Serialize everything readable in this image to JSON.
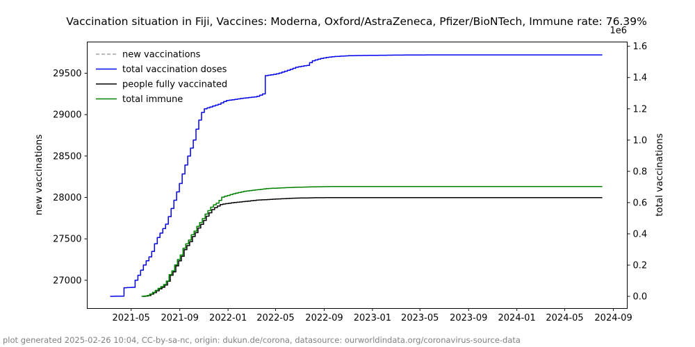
{
  "title": "Vaccination situation in Fiji, Vaccines: Moderna, Oxford/AstraZeneca, Pfizer/BioNTech, Immune rate: 76.39%",
  "footer": "plot generated 2025-02-26 10:04, CC-by-sa-nc, origin: dukun.de/corona, datasource: ourworldindata.org/coronavirus-source-data",
  "chart_data": {
    "type": "line",
    "title": "Vaccination situation in Fiji, Vaccines: Moderna, Oxford/AstraZeneca, Pfizer/BioNTech, Immune rate: 76.39%",
    "grid": false,
    "legend_position": "upper left",
    "x_axis": {
      "lim": [
        "2021-01-10",
        "2024-10-06"
      ],
      "ticks": [
        "2021-05-01",
        "2021-09-01",
        "2022-01-01",
        "2022-05-01",
        "2022-09-01",
        "2023-01-01",
        "2023-05-01",
        "2023-09-01",
        "2024-01-01",
        "2024-05-01",
        "2024-09-01"
      ],
      "tick_labels": [
        "2021-05",
        "2021-09",
        "2022-01",
        "2022-05",
        "2022-09",
        "2023-01",
        "2023-05",
        "2023-09",
        "2024-01",
        "2024-05",
        "2024-09"
      ]
    },
    "y_left": {
      "label": "new vaccinations",
      "lim": [
        26659,
        29877
      ],
      "ticks": [
        27000,
        27500,
        28000,
        28500,
        29000,
        29500
      ]
    },
    "y_right": {
      "label": "total vaccinations",
      "lim": [
        -77500,
        1627500
      ],
      "ticks": [
        0,
        200000,
        400000,
        600000,
        800000,
        1000000,
        1200000,
        1400000,
        1600000
      ],
      "offset_text": "1e6"
    },
    "legend": [
      {
        "label": "new vaccinations",
        "color": "#a0a0a0",
        "style": "dashed"
      },
      {
        "label": "total vaccination doses",
        "color": "#0000ee",
        "style": "solid"
      },
      {
        "label": "people fully vaccinated",
        "color": "#000000",
        "style": "solid"
      },
      {
        "label": "total immune",
        "color": "#008000",
        "style": "solid"
      }
    ],
    "series": [
      {
        "name": "people fully vaccinated",
        "color": "#000000",
        "style": "solid",
        "axis": "right",
        "points": [
          [
            "2021-05-30",
            0
          ],
          [
            "2021-06-12",
            4000
          ],
          [
            "2021-06-25",
            20000
          ],
          [
            "2021-07-12",
            50000
          ],
          [
            "2021-07-21",
            62000
          ],
          [
            "2021-07-30",
            85000
          ],
          [
            "2021-08-04",
            115000
          ],
          [
            "2021-08-09",
            140000
          ],
          [
            "2021-08-16",
            160000
          ],
          [
            "2021-08-21",
            190000
          ],
          [
            "2021-08-27",
            220000
          ],
          [
            "2021-09-03",
            245000
          ],
          [
            "2021-09-08",
            275000
          ],
          [
            "2021-09-13",
            305000
          ],
          [
            "2021-09-20",
            328000
          ],
          [
            "2021-09-26",
            350000
          ],
          [
            "2021-10-01",
            377000
          ],
          [
            "2021-10-08",
            399000
          ],
          [
            "2021-10-13",
            420000
          ],
          [
            "2021-10-18",
            442000
          ],
          [
            "2021-10-25",
            464000
          ],
          [
            "2021-10-31",
            486000
          ],
          [
            "2021-11-05",
            507000
          ],
          [
            "2021-11-12",
            528000
          ],
          [
            "2021-11-17",
            545000
          ],
          [
            "2021-11-22",
            558000
          ],
          [
            "2021-11-29",
            570000
          ],
          [
            "2021-12-05",
            578000
          ],
          [
            "2021-12-10",
            586000
          ],
          [
            "2021-12-17",
            590000
          ],
          [
            "2022-01-14",
            600000
          ],
          [
            "2022-02-13",
            608000
          ],
          [
            "2022-03-15",
            616000
          ],
          [
            "2022-04-12",
            620000
          ],
          [
            "2022-06-10",
            628000
          ],
          [
            "2022-08-07",
            631000
          ],
          [
            "2022-09-29",
            632000
          ],
          [
            "2023-06-01",
            632000
          ],
          [
            "2024-08-04",
            632000
          ]
        ]
      },
      {
        "name": "total immune",
        "color": "#008000",
        "style": "solid",
        "axis": "right",
        "points": [
          [
            "2021-05-27",
            0
          ],
          [
            "2021-06-10",
            5000
          ],
          [
            "2021-06-23",
            24000
          ],
          [
            "2021-07-10",
            55000
          ],
          [
            "2021-07-19",
            68000
          ],
          [
            "2021-07-28",
            91000
          ],
          [
            "2021-08-02",
            126000
          ],
          [
            "2021-08-07",
            148000
          ],
          [
            "2021-08-14",
            170000
          ],
          [
            "2021-08-19",
            201000
          ],
          [
            "2021-08-25",
            232000
          ],
          [
            "2021-09-01",
            258000
          ],
          [
            "2021-09-06",
            289000
          ],
          [
            "2021-09-11",
            320000
          ],
          [
            "2021-09-18",
            342000
          ],
          [
            "2021-09-24",
            364000
          ],
          [
            "2021-09-29",
            391000
          ],
          [
            "2021-10-06",
            413000
          ],
          [
            "2021-10-11",
            435000
          ],
          [
            "2021-10-16",
            457000
          ],
          [
            "2021-10-23",
            479000
          ],
          [
            "2021-10-29",
            501000
          ],
          [
            "2021-11-03",
            523000
          ],
          [
            "2021-11-10",
            545000
          ],
          [
            "2021-11-15",
            563000
          ],
          [
            "2021-11-20",
            576000
          ],
          [
            "2021-11-27",
            590000
          ],
          [
            "2021-12-03",
            598000
          ],
          [
            "2021-12-08",
            611000
          ],
          [
            "2021-12-15",
            634000
          ],
          [
            "2022-01-12",
            656000
          ],
          [
            "2022-02-11",
            673000
          ],
          [
            "2022-03-13",
            682000
          ],
          [
            "2022-04-10",
            690000
          ],
          [
            "2022-06-08",
            697000
          ],
          [
            "2022-08-05",
            701000
          ],
          [
            "2022-09-27",
            703000
          ],
          [
            "2023-06-01",
            703000
          ],
          [
            "2024-08-04",
            703000
          ]
        ]
      },
      {
        "name": "total vaccination doses",
        "color": "#0000ee",
        "style": "solid",
        "axis": "right",
        "points": [
          [
            "2021-03-09",
            0
          ],
          [
            "2021-04-10",
            2000
          ],
          [
            "2021-04-12",
            55000
          ],
          [
            "2021-05-06",
            58000
          ],
          [
            "2021-05-08",
            90000
          ],
          [
            "2021-05-18",
            135000
          ],
          [
            "2021-06-03",
            210000
          ],
          [
            "2021-06-19",
            267000
          ],
          [
            "2021-07-03",
            364000
          ],
          [
            "2021-07-15",
            413000
          ],
          [
            "2021-07-28",
            466000
          ],
          [
            "2021-08-07",
            540000
          ],
          [
            "2021-08-19",
            630000
          ],
          [
            "2021-09-01",
            730000
          ],
          [
            "2021-09-06",
            775000
          ],
          [
            "2021-09-20",
            890000
          ],
          [
            "2021-10-05",
            1000000
          ],
          [
            "2021-10-15",
            1100000
          ],
          [
            "2021-10-25",
            1170000
          ],
          [
            "2021-10-29",
            1197000
          ],
          [
            "2021-11-20",
            1215000
          ],
          [
            "2021-12-08",
            1230000
          ],
          [
            "2021-12-25",
            1252000
          ],
          [
            "2022-02-01",
            1266000
          ],
          [
            "2022-03-13",
            1278000
          ],
          [
            "2022-03-29",
            1295000
          ],
          [
            "2022-03-31",
            1410000
          ],
          [
            "2022-05-04",
            1424000
          ],
          [
            "2022-06-01",
            1447000
          ],
          [
            "2022-06-22",
            1467000
          ],
          [
            "2022-07-24",
            1480000
          ],
          [
            "2022-07-27",
            1503000
          ],
          [
            "2022-08-22",
            1522000
          ],
          [
            "2022-09-17",
            1533000
          ],
          [
            "2022-11-01",
            1540000
          ],
          [
            "2023-01-28",
            1543000
          ],
          [
            "2023-06-01",
            1545000
          ],
          [
            "2024-08-04",
            1545000
          ]
        ]
      }
    ]
  }
}
